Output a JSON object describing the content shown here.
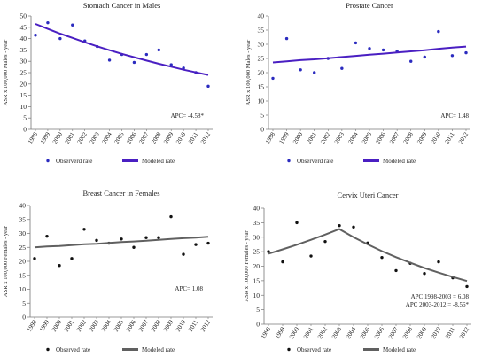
{
  "chart_data": [
    {
      "type": "scatter",
      "title": "Stomach Cancer in Males",
      "ylabel": "ASR x 100,000  Males - year",
      "xlabel": "",
      "categories": [
        "1998",
        "1999",
        "2000",
        "2001",
        "2002",
        "2003",
        "2004",
        "2005",
        "2006",
        "2007",
        "2008",
        "2009",
        "2010",
        "2011",
        "2012"
      ],
      "ylim": [
        0,
        50
      ],
      "yticks": [
        0,
        5,
        10,
        15,
        20,
        25,
        30,
        35,
        40,
        45,
        50
      ],
      "series": [
        {
          "name": "Observerd rate",
          "kind": "points",
          "color": "#2b2bbf",
          "values": [
            41.5,
            47,
            40,
            46,
            39,
            36.5,
            30.5,
            33,
            29.5,
            33,
            35,
            28.5,
            27,
            25,
            19
          ]
        },
        {
          "name": "Modeled rate",
          "kind": "line",
          "color": "#4a1fc2",
          "values": [
            46.5,
            44.3,
            42.2,
            40.3,
            38.4,
            36.6,
            34.9,
            33.3,
            31.8,
            30.3,
            28.9,
            27.6,
            26.3,
            25.1,
            24.0
          ]
        }
      ],
      "annotations": [
        "APC= -4.58*"
      ],
      "legend": "bottom"
    },
    {
      "type": "scatter",
      "title": "Prostate Cancer",
      "ylabel": "ASR x 100,000 Males - year",
      "xlabel": "",
      "categories": [
        "1998",
        "1999",
        "2000",
        "2001",
        "2002",
        "2003",
        "2004",
        "2005",
        "2006",
        "2007",
        "2008",
        "2009",
        "2010",
        "2011",
        "2012"
      ],
      "ylim": [
        0,
        40
      ],
      "yticks": [
        0,
        5,
        10,
        15,
        20,
        25,
        30,
        35,
        40
      ],
      "series": [
        {
          "name": "Observerd rate",
          "kind": "points",
          "color": "#2b2bbf",
          "values": [
            18,
            32,
            21,
            20,
            25,
            21.5,
            30.5,
            28.5,
            28,
            27.5,
            24,
            25.5,
            34.5,
            26,
            27
          ]
        },
        {
          "name": "Modeled rate",
          "kind": "line",
          "color": "#4a1fc2",
          "values": [
            23.6,
            24.0,
            24.4,
            24.7,
            25.1,
            25.5,
            25.9,
            26.3,
            26.7,
            27.1,
            27.5,
            27.9,
            28.4,
            28.8,
            29.2
          ]
        }
      ],
      "annotations": [
        "APC= 1.48"
      ],
      "legend": "bottom"
    },
    {
      "type": "scatter",
      "title": "Breast Cancer in Females",
      "ylabel": "ASR x 100,000  Females - year",
      "xlabel": "",
      "categories": [
        "1998",
        "1999",
        "2000",
        "2001",
        "2002",
        "2003",
        "2004",
        "2005",
        "2006",
        "2007",
        "2008",
        "2009",
        "2010",
        "2011",
        "2012"
      ],
      "ylim": [
        0,
        40
      ],
      "yticks": [
        0,
        5,
        10,
        15,
        20,
        25,
        30,
        35,
        40
      ],
      "series": [
        {
          "name": "Observed rate",
          "kind": "points",
          "color": "#111111",
          "values": [
            21,
            29,
            18.5,
            21,
            31.5,
            27.5,
            26.5,
            28,
            25,
            28.5,
            28.5,
            36,
            22.5,
            26,
            26.5
          ]
        },
        {
          "name": "Modeled rate",
          "kind": "line",
          "color": "#606060",
          "values": [
            25.0,
            25.3,
            25.5,
            25.8,
            26.1,
            26.3,
            26.6,
            26.9,
            27.1,
            27.4,
            27.7,
            28.0,
            28.3,
            28.5,
            28.8
          ]
        }
      ],
      "annotations": [
        "APC= 1.08"
      ],
      "legend": "bottom"
    },
    {
      "type": "scatter",
      "title": "Cervix Uteri Cancer",
      "ylabel": "ASR x 100,000 Females - year",
      "xlabel": "",
      "categories": [
        "1998",
        "1999",
        "2000",
        "2001",
        "2002",
        "2003",
        "2004",
        "2005",
        "2006",
        "2007",
        "2008",
        "2009",
        "2010",
        "2011",
        "2012"
      ],
      "ylim": [
        0,
        40
      ],
      "yticks": [
        0,
        5,
        10,
        15,
        20,
        25,
        30,
        35,
        40
      ],
      "series": [
        {
          "name": "Observed rate",
          "kind": "points",
          "color": "#111111",
          "values": [
            25,
            21.5,
            35,
            23.5,
            28.5,
            34,
            33.5,
            28,
            23,
            18.5,
            21,
            17.5,
            21.5,
            16,
            13
          ]
        },
        {
          "name": "Modeled rate",
          "kind": "line",
          "color": "#606060",
          "values": [
            24.3,
            25.8,
            27.4,
            29.1,
            30.9,
            32.8,
            30.0,
            27.5,
            25.2,
            23.1,
            21.2,
            19.4,
            17.8,
            16.3,
            14.9
          ]
        }
      ],
      "annotations": [
        "APC 1998-2003 = 6.08",
        "APC 2003-2012 = -8.56*"
      ],
      "legend": "bottom"
    }
  ]
}
